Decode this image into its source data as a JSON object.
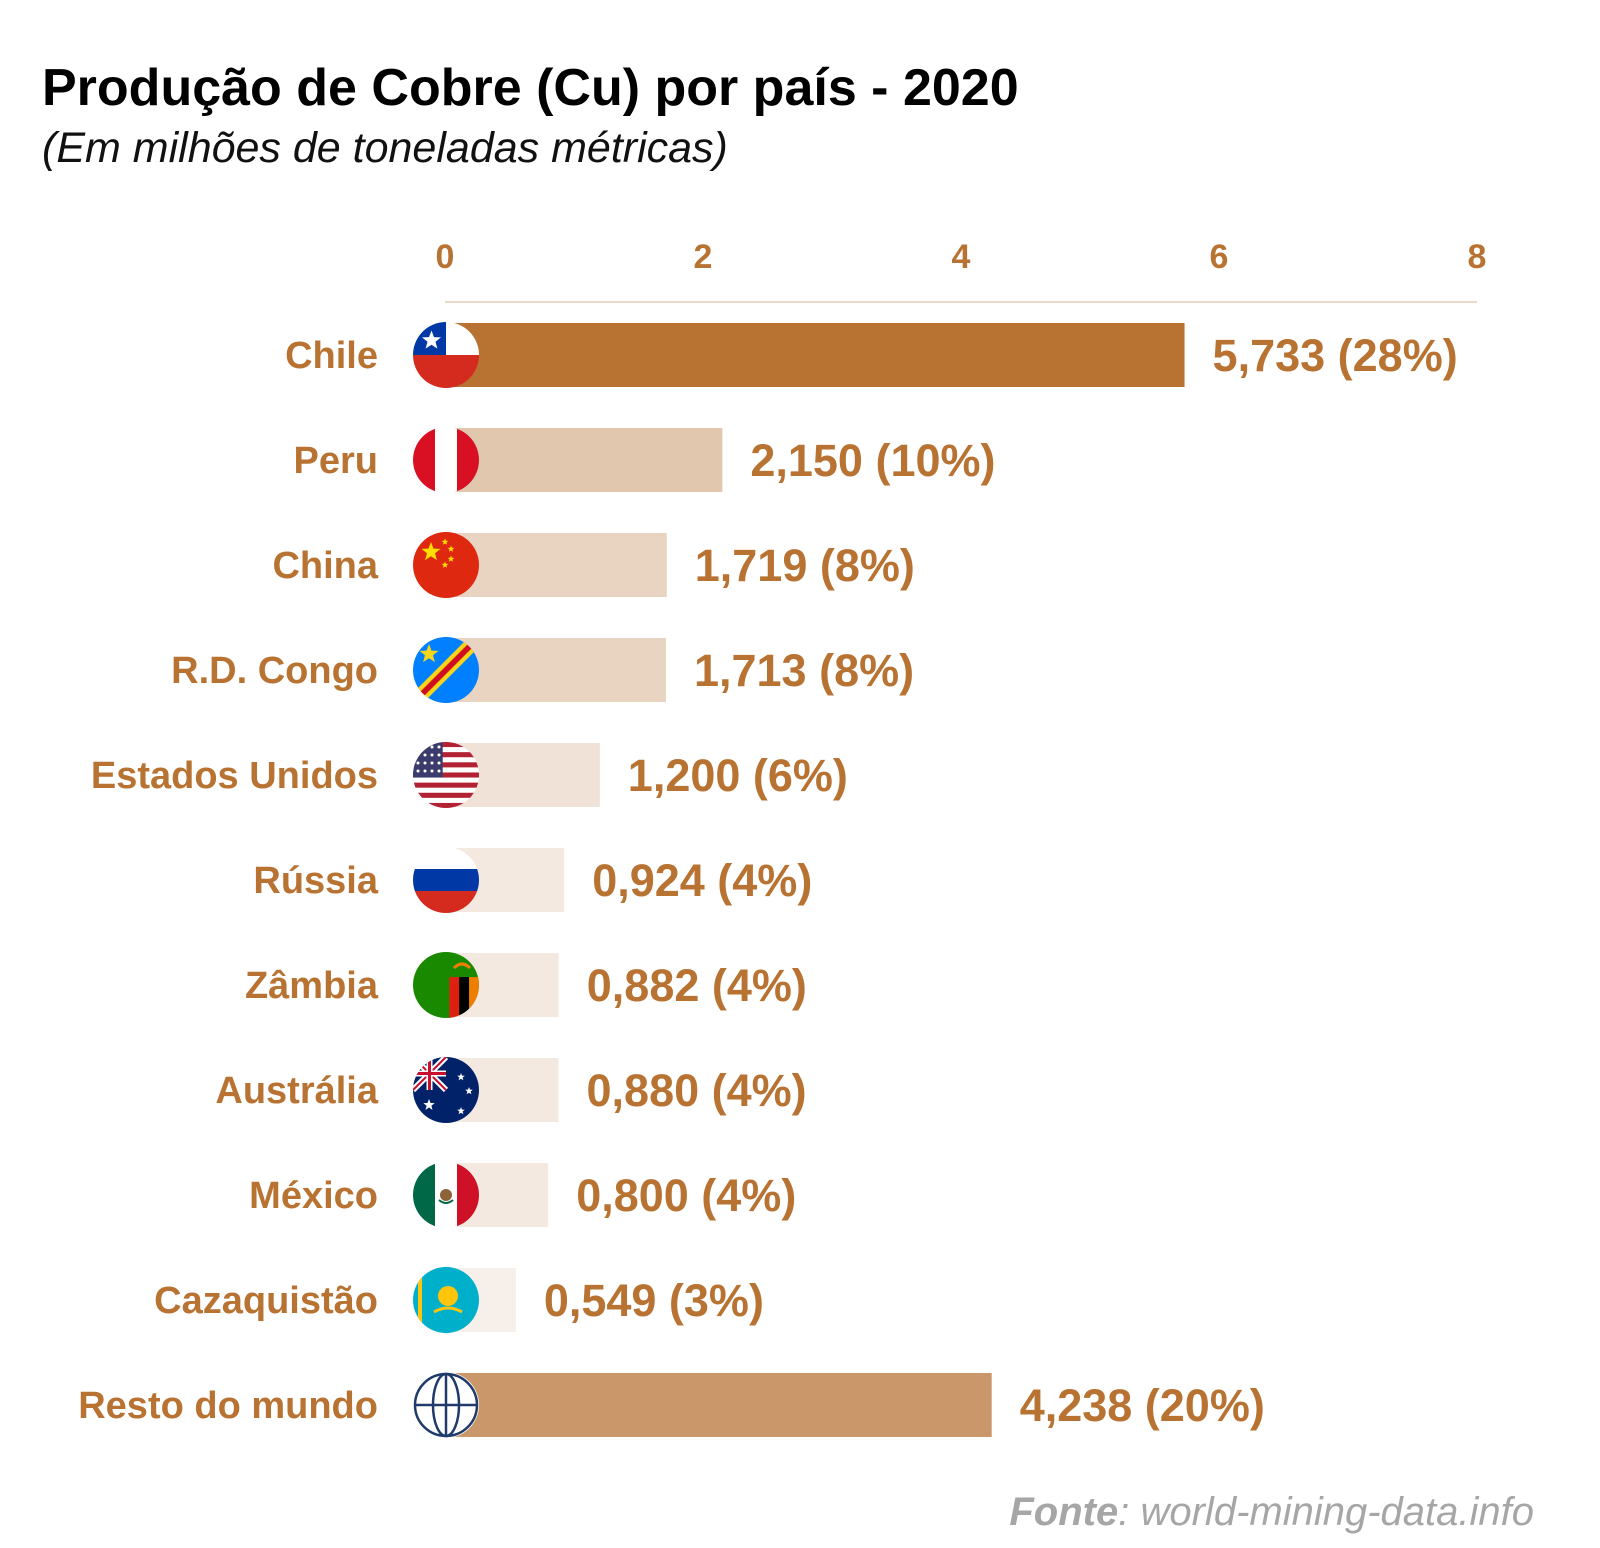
{
  "title": "Produção de Cobre (Cu) por país - 2020",
  "subtitle": "(Em milhões de toneladas métricas)",
  "source": {
    "label": "Fonte",
    "text": ": world-mining-data.info"
  },
  "chart_data": {
    "type": "bar",
    "orientation": "horizontal",
    "xlim": [
      0,
      8
    ],
    "xticks": [
      "0",
      "2",
      "4",
      "6",
      "8"
    ],
    "axis_position": "top",
    "grid": false,
    "categories": [
      "Chile",
      "Peru",
      "China",
      "R.D. Congo",
      "Estados Unidos",
      "Rússia",
      "Zâmbia",
      "Austrália",
      "México",
      "Cazaquistão",
      "Resto do mundo"
    ],
    "values": [
      5.733,
      2.15,
      1.719,
      1.713,
      1.2,
      0.924,
      0.882,
      0.88,
      0.8,
      0.549,
      4.238
    ],
    "value_labels": [
      "5,733 (28%)",
      "2,150 (10%)",
      "1,719 (8%)",
      "1,713 (8%)",
      "1,200 (6%)",
      "0,924 (4%)",
      "0,882 (4%)",
      "0,880 (4%)",
      "0,800 (4%)",
      "0,549 (3%)",
      "4,238 (20%)"
    ],
    "percentages": [
      28,
      10,
      8,
      8,
      6,
      4,
      4,
      4,
      4,
      3,
      20
    ],
    "bar_colors": [
      "#b87333",
      "#e1c7ae",
      "#e8d4c1",
      "#e8d4c1",
      "#f0e2d6",
      "#f4e9e0",
      "#f4e9e0",
      "#f4e9e0",
      "#f4e9e0",
      "#f7efe9",
      "#c9976a"
    ],
    "icons": [
      "chile-flag-icon",
      "peru-flag-icon",
      "china-flag-icon",
      "dr-congo-flag-icon",
      "usa-flag-icon",
      "russia-flag-icon",
      "zambia-flag-icon",
      "australia-flag-icon",
      "mexico-flag-icon",
      "kazakhstan-flag-icon",
      "globe-icon"
    ],
    "label_color": "#b87333"
  }
}
